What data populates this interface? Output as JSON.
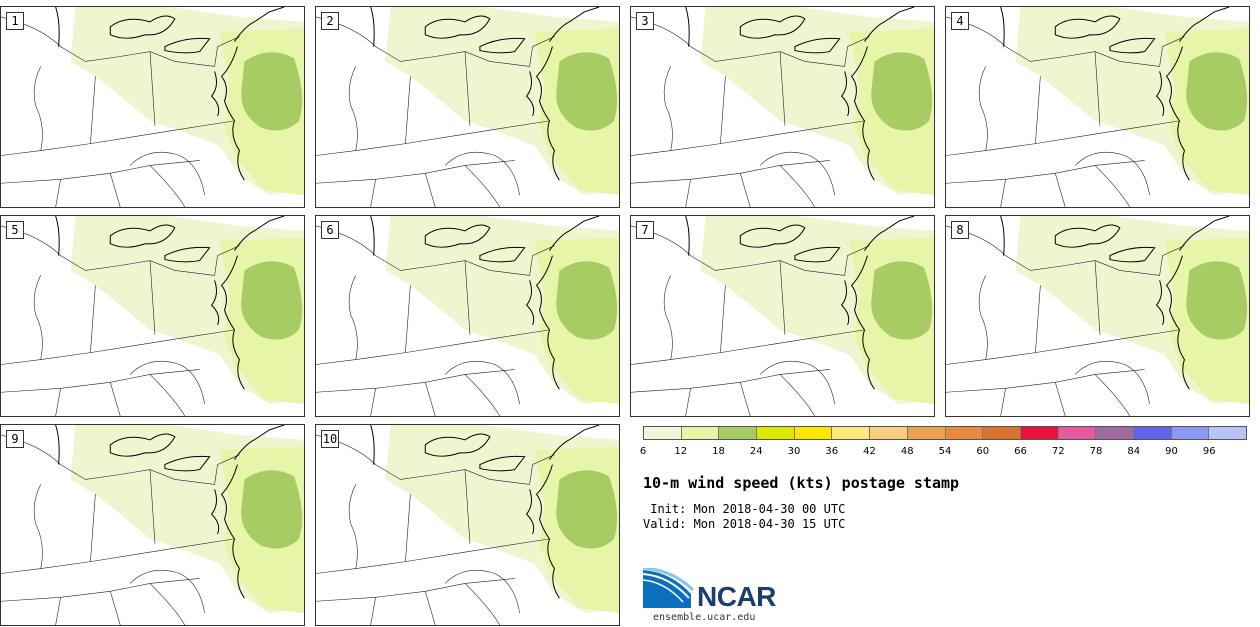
{
  "panels": [
    {
      "label": "1"
    },
    {
      "label": "2"
    },
    {
      "label": "3"
    },
    {
      "label": "4"
    },
    {
      "label": "5"
    },
    {
      "label": "6"
    },
    {
      "label": "7"
    },
    {
      "label": "8"
    },
    {
      "label": "9"
    },
    {
      "label": "10"
    }
  ],
  "colorbar": {
    "colors": [
      "#f2f7d9",
      "#e4f5a4",
      "#a8cc64",
      "#dce800",
      "#ffe600",
      "#ffe97a",
      "#f7cf7e",
      "#eaa250",
      "#e78a3f",
      "#d97330",
      "#e8143e",
      "#e45a9c",
      "#a06aa3",
      "#6262ea",
      "#8a9af0",
      "#b9c4f6"
    ],
    "ticks": [
      "6",
      "12",
      "18",
      "24",
      "30",
      "36",
      "42",
      "48",
      "54",
      "60",
      "66",
      "72",
      "78",
      "84",
      "90",
      "96"
    ]
  },
  "colors": {
    "light": "#eef6d0",
    "mid": "#e6f5a8",
    "dark": "#a8cc64"
  },
  "title": "10-m wind speed (kts) postage stamp",
  "init": " Init: Mon 2018-04-30 00 UTC",
  "valid": "Valid: Mon 2018-04-30 15 UTC",
  "logo": {
    "text": "NCAR",
    "url": "ensemble.ucar.edu"
  }
}
